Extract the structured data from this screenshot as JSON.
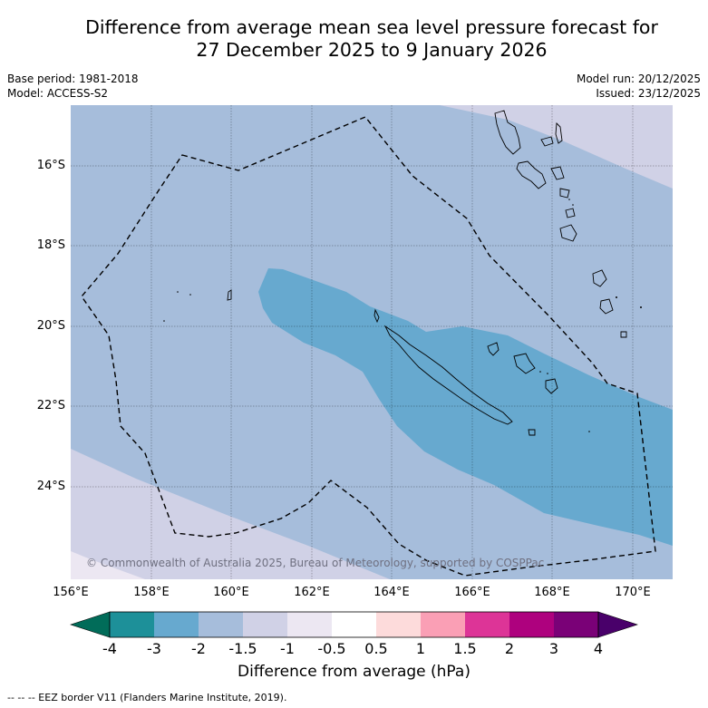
{
  "title": {
    "line1": "Difference from average mean sea level pressure forecast for",
    "line2": "27 December 2025 to 9 January 2026"
  },
  "meta": {
    "base_period": "Base period: 1981-2018",
    "model": "Model: ACCESS-S2",
    "model_run": "Model run: 20/12/2025",
    "issued": "Issued: 23/12/2025"
  },
  "map": {
    "lat_labels": [
      "16°S",
      "18°S",
      "20°S",
      "22°S",
      "24°S"
    ],
    "lon_labels": [
      "156°E",
      "158°E",
      "160°E",
      "162°E",
      "164°E",
      "166°E",
      "168°E",
      "170°E"
    ],
    "credit": "© Commonwealth of Australia 2025, Bureau of Meteorology, supported by COSPPac",
    "fills": {
      "lt_m3": "#1d9099",
      "m3_m2": "#67a9cf",
      "m2_m1p5": "#a6bddb",
      "m1p5_m1": "#d0d1e6",
      "m1_m0p5": "#ece7f2",
      "m0p5_0p5": "#ffffff",
      "ocean_edge": "#d0d1e6"
    }
  },
  "colorbar": {
    "title": "Difference from average (hPa)",
    "labels": [
      "-4",
      "-3",
      "-2",
      "-1.5",
      "-1",
      "-0.5",
      "0.5",
      "1",
      "1.5",
      "2",
      "3",
      "4"
    ],
    "colors": [
      "#1d9099",
      "#67a9cf",
      "#a6bddb",
      "#d0d1e6",
      "#ece7f2",
      "#ffffff",
      "#fddbdb",
      "#fa9fb5",
      "#dd3497",
      "#ae017e",
      "#7a0177"
    ],
    "under_color": "#016c59",
    "over_color": "#49006a"
  },
  "legend": {
    "eez": "-- -- -- EEZ border V11 (Flanders Marine Institute, 2019)."
  }
}
